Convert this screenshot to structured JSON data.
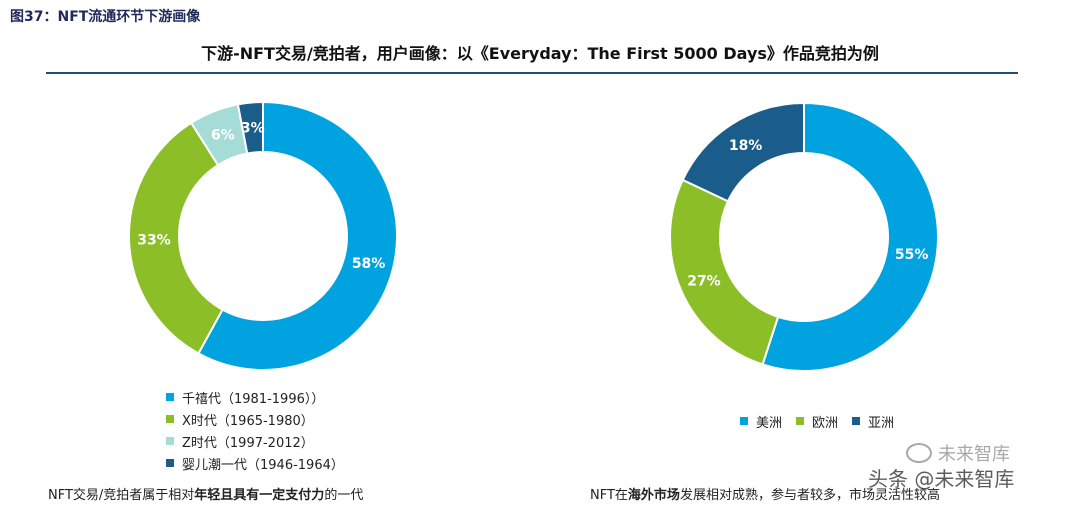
{
  "figure_label": "图37：NFT流通环节下游画像",
  "subtitle": "下游-NFT交易/竞拍者，用户画像：以《Everyday：The First 5000 Days》作品竞拍为例",
  "colors": {
    "blue": "#00a2e0",
    "green": "#8cbf27",
    "light_teal": "#a6dcd8",
    "navy": "#1a5c8a",
    "rule": "#1f4e79"
  },
  "chart_data": [
    {
      "type": "pie",
      "variant": "donut",
      "title": "",
      "slices": [
        {
          "label": "千禧代（1981-1996））",
          "value": 58,
          "display": "58%",
          "color": "#00a2e0"
        },
        {
          "label": "X时代（1965-1980）",
          "value": 33,
          "display": "33%",
          "color": "#8cbf27"
        },
        {
          "label": "Z时代（1997-2012）",
          "value": 6,
          "display": "6%",
          "color": "#a6dcd8"
        },
        {
          "label": "婴儿潮一代（1946-1964）",
          "value": 3,
          "display": "3%",
          "color": "#1a5c8a"
        }
      ],
      "legend_position": "bottom"
    },
    {
      "type": "pie",
      "variant": "donut",
      "title": "",
      "slices": [
        {
          "label": "美洲",
          "value": 55,
          "display": "55%",
          "color": "#00a2e0"
        },
        {
          "label": "欧洲",
          "value": 27,
          "display": "27%",
          "color": "#8cbf27"
        },
        {
          "label": "亚洲",
          "value": 18,
          "display": "18%",
          "color": "#1a5c8a"
        }
      ],
      "legend_position": "bottom"
    }
  ],
  "captions": {
    "left": {
      "pre": "NFT交易/竞拍者属于相对",
      "bold": "年轻且具有一定支付力",
      "post": "的一代"
    },
    "right": {
      "pre": "NFT在",
      "bold": "海外市场",
      "post": "发展相对成熟，参与者较多，市场灵活性较高"
    }
  },
  "watermark": {
    "top": "未来智库",
    "bottom": "头条 @未来智库"
  }
}
